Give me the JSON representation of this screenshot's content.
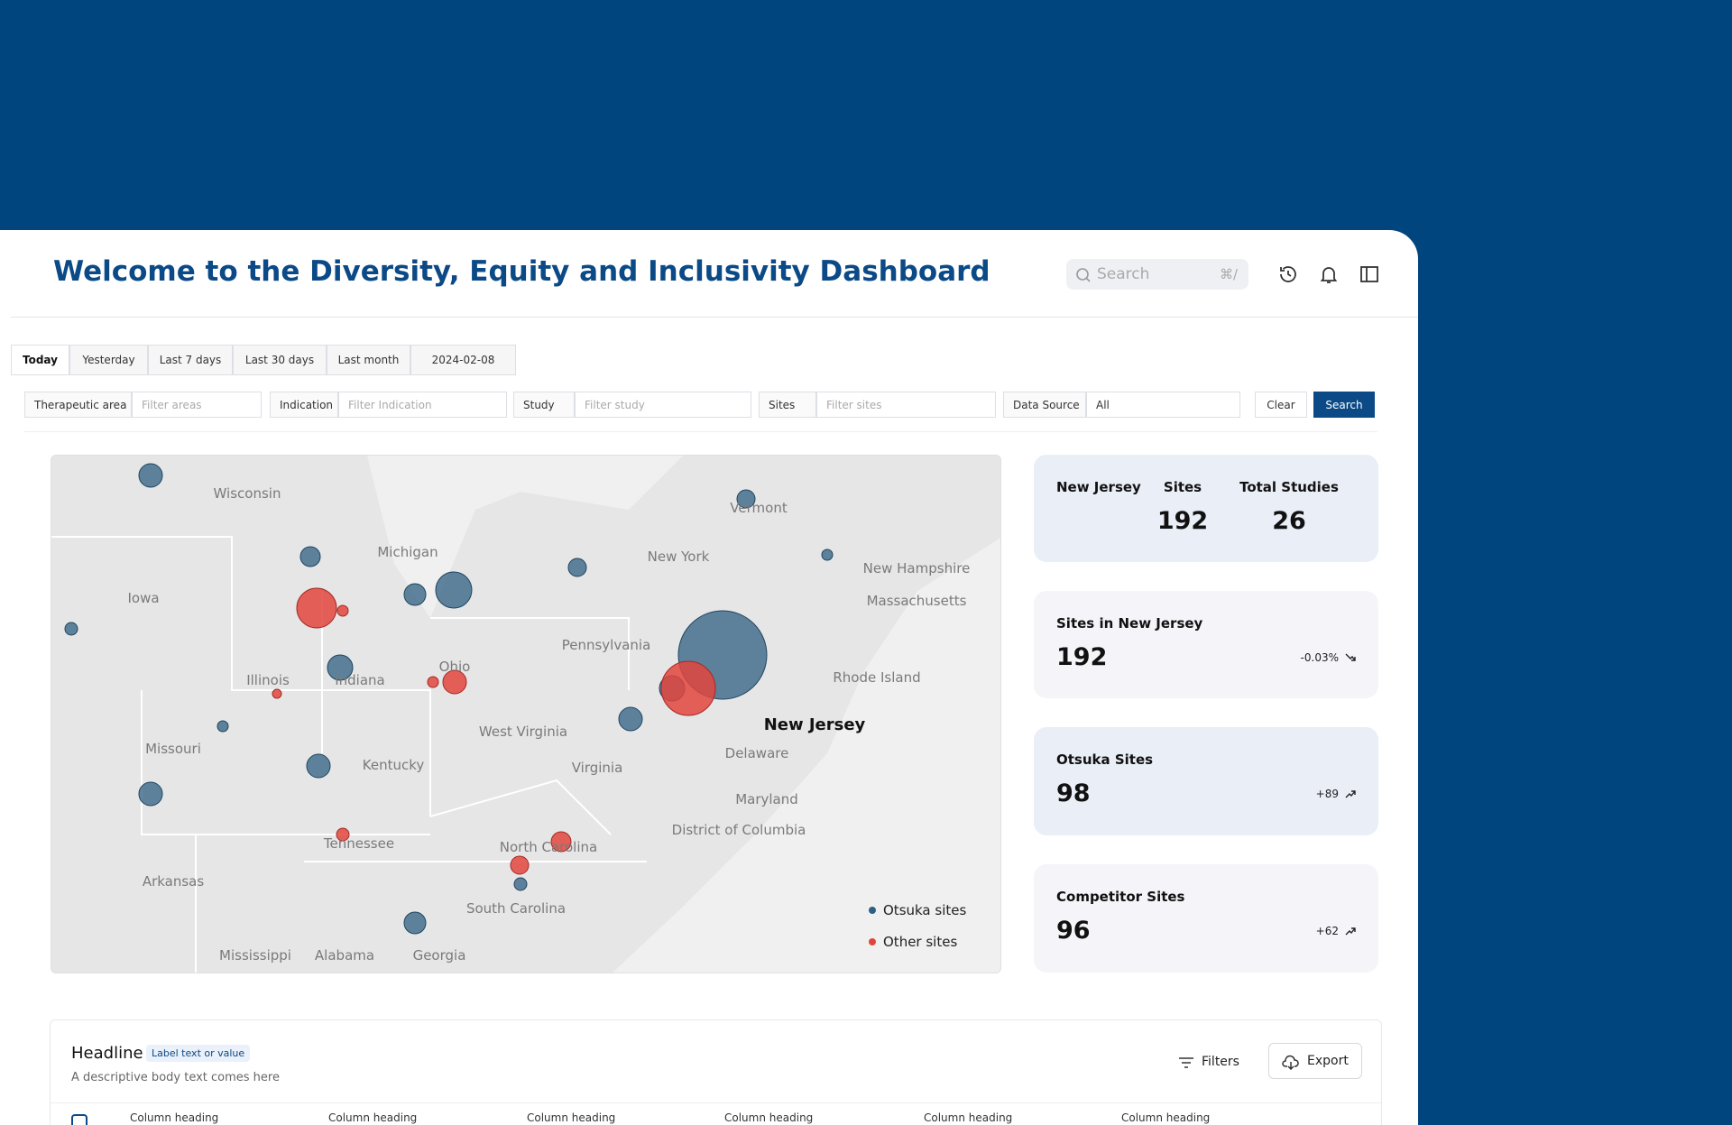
{
  "header": {
    "title": "Welcome to the Diversity, Equity and Inclusivity Dashboard",
    "search_placeholder": "Search",
    "search_shortcut": "⌘/"
  },
  "date_tabs": [
    "Today",
    "Yesterday",
    "Last 7 days",
    "Last 30 days",
    "Last month",
    "2024-02-08"
  ],
  "filters": [
    {
      "label": "Therapeutic area",
      "placeholder": "Filter areas"
    },
    {
      "label": "Indication",
      "placeholder": "Filter Indication"
    },
    {
      "label": "Study",
      "placeholder": "Filter study"
    },
    {
      "label": "Sites",
      "placeholder": "Filter sites"
    },
    {
      "label": "Data Source",
      "placeholder": "All"
    }
  ],
  "buttons": {
    "clear": "Clear",
    "search": "Search"
  },
  "map": {
    "labels": [
      "Wisconsin",
      "Michigan",
      "Iowa",
      "Vermont",
      "New York",
      "New Hampshire",
      "Massachusetts",
      "Pennsylvania",
      "Rhode Island",
      "Illinois",
      "Indiana",
      "Ohio",
      "West Virginia",
      "Missouri",
      "Kentucky",
      "Virginia",
      "Delaware",
      "Maryland",
      "District of Columbia",
      "Tennessee",
      "North Carolina",
      "Arkansas",
      "South Carolina",
      "Mississippi",
      "Alabama",
      "Georgia"
    ],
    "highlight": "New Jersey",
    "legend": [
      "Otsuka sites",
      "Other sites"
    ]
  },
  "summary_card": {
    "state": "New Jersey",
    "sites_label": "Sites",
    "sites": 192,
    "studies_label": "Total Studies",
    "studies": 26
  },
  "stat_cards": [
    {
      "title": "Sites in New Jersey",
      "value": 192,
      "change": "-0.03%"
    },
    {
      "title": "Otsuka Sites",
      "value": 98,
      "change": "+89"
    },
    {
      "title": "Competitor Sites",
      "value": 96,
      "change": "+62"
    }
  ],
  "table": {
    "headline": "Headline",
    "badge": "Label text or value",
    "description": "A descriptive body text comes here",
    "filters": "Filters",
    "export": "Export",
    "columns": [
      "Column heading",
      "Column heading",
      "Column heading",
      "Column heading",
      "Column heading",
      "Column heading"
    ]
  }
}
